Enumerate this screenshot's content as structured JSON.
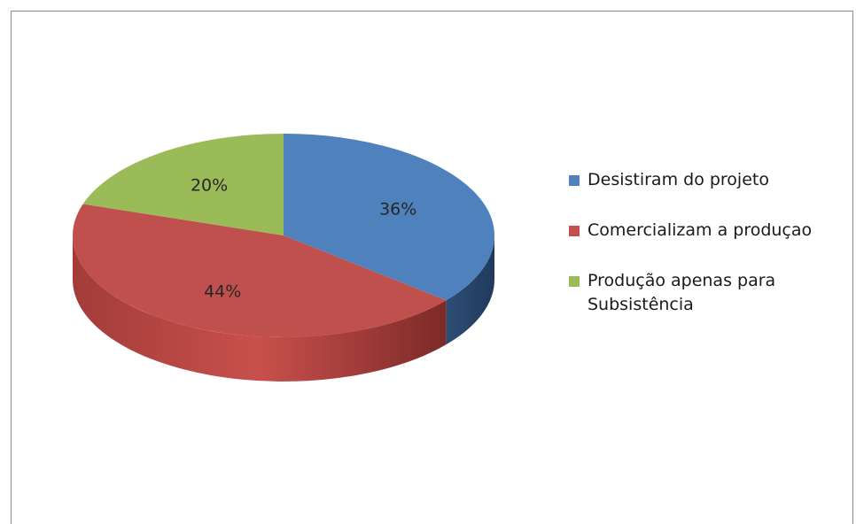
{
  "chart_data": {
    "type": "pie",
    "title": "",
    "categories": [
      "Desistiram do projeto",
      "Comercializam a produçao",
      "Produção apenas para Subsistência"
    ],
    "values": [
      36,
      44,
      20
    ],
    "labels": [
      "36%",
      "44%",
      "20%"
    ],
    "colors": [
      "#4f81bd",
      "#c0504d",
      "#9bbb59"
    ],
    "legend_position": "right",
    "style": "3d"
  },
  "legend": {
    "items": [
      {
        "label": "Desistiram do projeto",
        "color": "#4f81bd"
      },
      {
        "label": "Comercializam a produçao",
        "color": "#c0504d"
      },
      {
        "label": "Produção apenas para Subsistência",
        "color": "#9bbb59"
      }
    ]
  }
}
